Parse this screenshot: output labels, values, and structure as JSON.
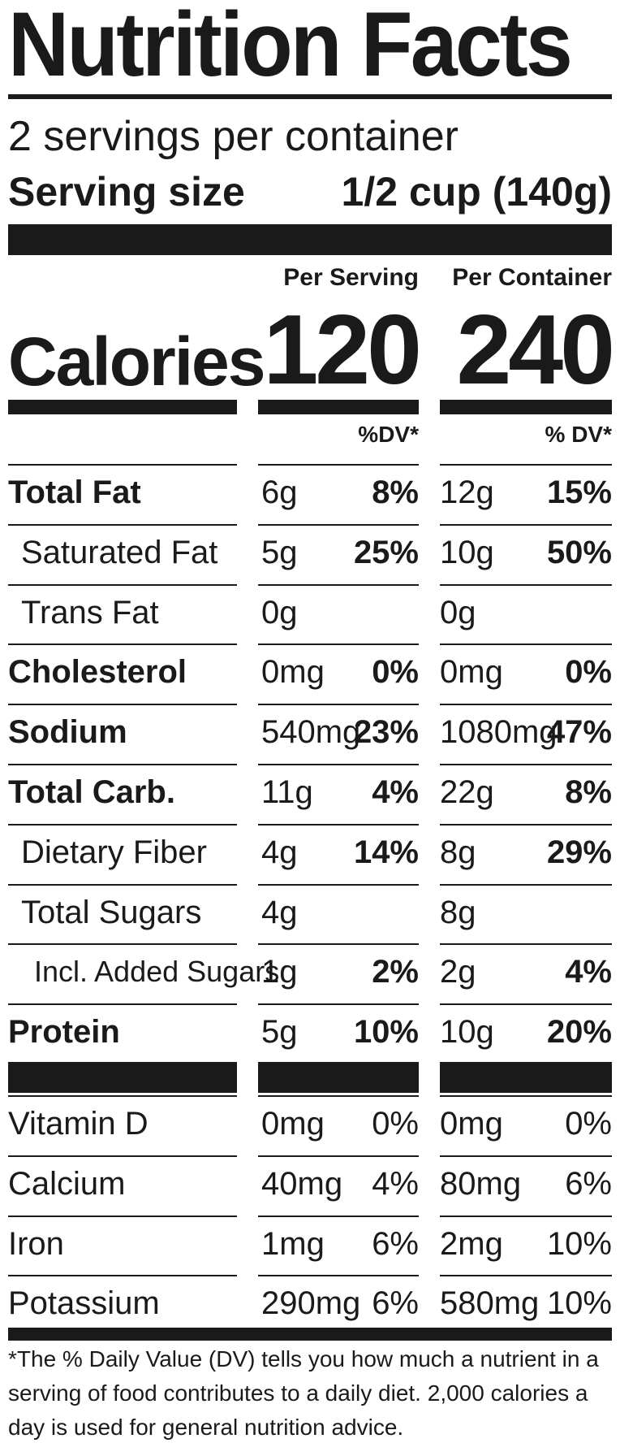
{
  "label": {
    "title": "Nutrition Facts",
    "servings_per_container": "2 servings per container",
    "serving_size_label": "Serving size",
    "serving_size_value": "1/2 cup (140g)",
    "per_serving_header": "Per Serving",
    "per_container_header": "Per Container",
    "calories_label": "Calories",
    "calories_per_serving": "120",
    "calories_per_container": "240",
    "dv_header_serving": "%DV*",
    "dv_header_container": "% DV*",
    "nutrients": [
      {
        "name": "Total Fat",
        "serving_amount": "6g",
        "serving_dv": "8%",
        "container_amount": "12g",
        "container_dv": "15%"
      },
      {
        "name": "Saturated Fat",
        "serving_amount": "5g",
        "serving_dv": "25%",
        "container_amount": "10g",
        "container_dv": "50%"
      },
      {
        "name": "Trans Fat",
        "serving_amount": "0g",
        "serving_dv": "",
        "container_amount": "0g",
        "container_dv": ""
      },
      {
        "name": "Cholesterol",
        "serving_amount": "0mg",
        "serving_dv": "0%",
        "container_amount": "0mg",
        "container_dv": "0%"
      },
      {
        "name": "Sodium",
        "serving_amount": "540mg",
        "serving_dv": "23%",
        "container_amount": "1080mg",
        "container_dv": "47%"
      },
      {
        "name": "Total Carb.",
        "serving_amount": "11g",
        "serving_dv": "4%",
        "container_amount": "22g",
        "container_dv": "8%"
      },
      {
        "name": "Dietary Fiber",
        "serving_amount": "4g",
        "serving_dv": "14%",
        "container_amount": "8g",
        "container_dv": "29%"
      },
      {
        "name": "Total Sugars",
        "serving_amount": "4g",
        "serving_dv": "",
        "container_amount": "8g",
        "container_dv": ""
      },
      {
        "name": "Incl. Added Sugars",
        "serving_amount": "1g",
        "serving_dv": "2%",
        "container_amount": "2g",
        "container_dv": "4%"
      },
      {
        "name": "Protein",
        "serving_amount": "5g",
        "serving_dv": "10%",
        "container_amount": "10g",
        "container_dv": "20%"
      }
    ],
    "vitamins": [
      {
        "name": "Vitamin D",
        "serving_amount": "0mg",
        "serving_dv": "0%",
        "container_amount": "0mg",
        "container_dv": "0%"
      },
      {
        "name": "Calcium",
        "serving_amount": "40mg",
        "serving_dv": "4%",
        "container_amount": "80mg",
        "container_dv": "6%"
      },
      {
        "name": "Iron",
        "serving_amount": "1mg",
        "serving_dv": "6%",
        "container_amount": "2mg",
        "container_dv": "10%"
      },
      {
        "name": "Potassium",
        "serving_amount": "290mg",
        "serving_dv": "6%",
        "container_amount": "580mg",
        "container_dv": "10%"
      }
    ],
    "footnote": "*The % Daily Value (DV) tells you how much a nutrient in a serving of food contributes to a daily diet. 2,000 calories a day is used for general nutrition advice."
  }
}
